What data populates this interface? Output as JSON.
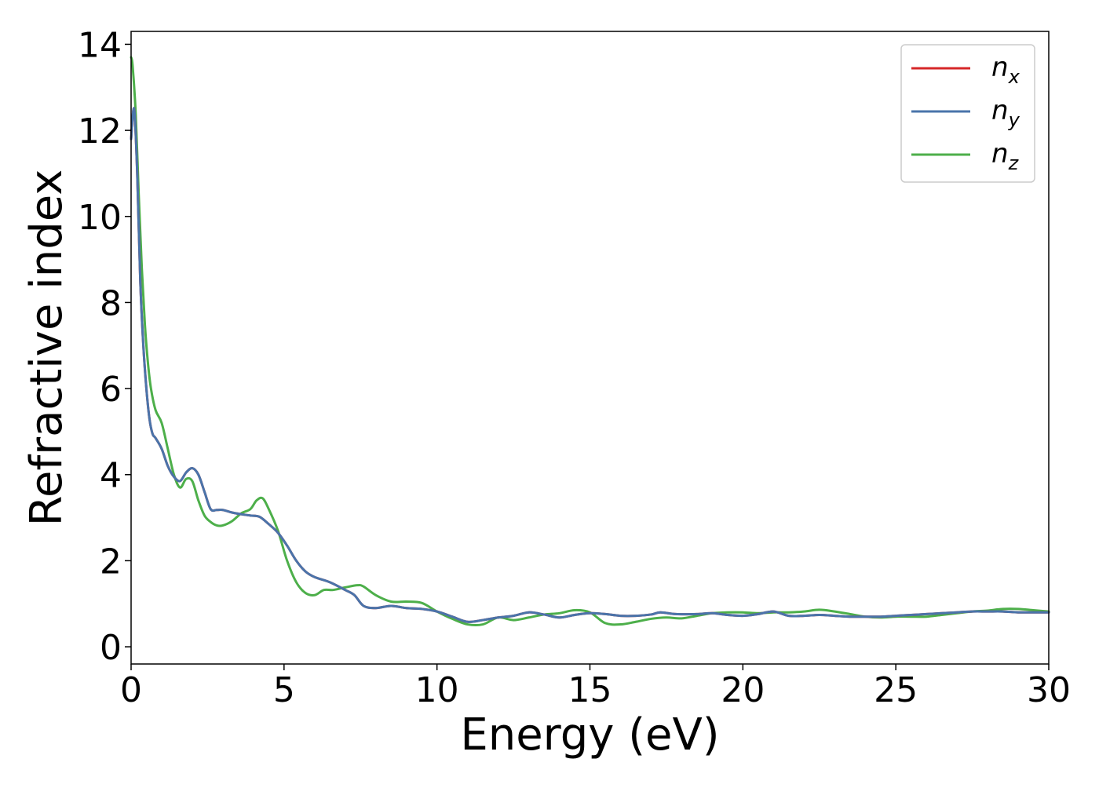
{
  "chart_data": {
    "type": "line",
    "title": "",
    "xlabel": "Energy (eV)",
    "ylabel": "Refractive index",
    "xlim": [
      0,
      30
    ],
    "ylim": [
      -0.4,
      14.3
    ],
    "xticks": [
      0,
      5,
      10,
      15,
      20,
      25,
      30
    ],
    "yticks": [
      0,
      2,
      4,
      6,
      8,
      10,
      12,
      14
    ],
    "grid": false,
    "legend_position": "top-right",
    "series": [
      {
        "name": "n_x",
        "label_base": "n",
        "label_sub": "x",
        "color": "#d62728",
        "x": [
          0.0,
          0.1,
          0.2,
          0.3,
          0.4,
          0.5,
          0.6,
          0.7,
          0.8,
          1.0,
          1.2,
          1.4,
          1.6,
          1.8,
          2.0,
          2.2,
          2.4,
          2.6,
          2.8,
          3.0,
          3.3,
          3.6,
          3.9,
          4.2,
          4.5,
          4.8,
          5.1,
          5.4,
          5.7,
          6.0,
          6.5,
          7.0,
          7.3,
          7.6,
          8.0,
          8.5,
          9.0,
          9.5,
          10.0,
          10.5,
          11.0,
          11.5,
          12.0,
          12.5,
          13.0,
          13.5,
          14.0,
          14.5,
          15.0,
          15.5,
          16.0,
          16.5,
          17.0,
          17.3,
          17.8,
          18.5,
          19.0,
          19.5,
          20.0,
          20.5,
          21.0,
          21.5,
          22.0,
          22.5,
          23.0,
          23.5,
          24.0,
          24.5,
          25.0,
          25.5,
          26.0,
          26.5,
          27.0,
          27.5,
          28.0,
          28.5,
          29.0,
          29.5,
          30.0
        ],
        "y": [
          11.8,
          12.5,
          11.0,
          8.5,
          7.0,
          6.0,
          5.3,
          4.95,
          4.85,
          4.6,
          4.2,
          3.95,
          3.85,
          4.05,
          4.15,
          4.0,
          3.6,
          3.2,
          3.18,
          3.18,
          3.12,
          3.08,
          3.05,
          3.02,
          2.85,
          2.65,
          2.35,
          2.0,
          1.75,
          1.62,
          1.5,
          1.32,
          1.2,
          0.95,
          0.9,
          0.95,
          0.9,
          0.88,
          0.82,
          0.7,
          0.58,
          0.62,
          0.68,
          0.72,
          0.8,
          0.75,
          0.68,
          0.74,
          0.78,
          0.76,
          0.72,
          0.72,
          0.75,
          0.8,
          0.76,
          0.76,
          0.78,
          0.74,
          0.72,
          0.76,
          0.82,
          0.72,
          0.72,
          0.74,
          0.72,
          0.7,
          0.7,
          0.7,
          0.72,
          0.74,
          0.76,
          0.78,
          0.8,
          0.82,
          0.82,
          0.82,
          0.8,
          0.8,
          0.8
        ]
      },
      {
        "name": "n_y",
        "label_base": "n",
        "label_sub": "y",
        "color": "#4a74aa",
        "x": [
          0.0,
          0.1,
          0.2,
          0.3,
          0.4,
          0.5,
          0.6,
          0.7,
          0.8,
          1.0,
          1.2,
          1.4,
          1.6,
          1.8,
          2.0,
          2.2,
          2.4,
          2.6,
          2.8,
          3.0,
          3.3,
          3.6,
          3.9,
          4.2,
          4.5,
          4.8,
          5.1,
          5.4,
          5.7,
          6.0,
          6.5,
          7.0,
          7.3,
          7.6,
          8.0,
          8.5,
          9.0,
          9.5,
          10.0,
          10.5,
          11.0,
          11.5,
          12.0,
          12.5,
          13.0,
          13.5,
          14.0,
          14.5,
          15.0,
          15.5,
          16.0,
          16.5,
          17.0,
          17.3,
          17.8,
          18.5,
          19.0,
          19.5,
          20.0,
          20.5,
          21.0,
          21.5,
          22.0,
          22.5,
          23.0,
          23.5,
          24.0,
          24.5,
          25.0,
          25.5,
          26.0,
          26.5,
          27.0,
          27.5,
          28.0,
          28.5,
          29.0,
          29.5,
          30.0
        ],
        "y": [
          11.8,
          12.5,
          11.0,
          8.5,
          7.0,
          6.0,
          5.3,
          4.95,
          4.85,
          4.6,
          4.2,
          3.95,
          3.85,
          4.05,
          4.15,
          4.0,
          3.6,
          3.2,
          3.18,
          3.18,
          3.12,
          3.08,
          3.05,
          3.02,
          2.85,
          2.65,
          2.35,
          2.0,
          1.75,
          1.62,
          1.5,
          1.32,
          1.2,
          0.95,
          0.9,
          0.95,
          0.9,
          0.88,
          0.82,
          0.7,
          0.58,
          0.62,
          0.68,
          0.72,
          0.8,
          0.75,
          0.68,
          0.74,
          0.78,
          0.76,
          0.72,
          0.72,
          0.75,
          0.8,
          0.76,
          0.76,
          0.78,
          0.74,
          0.72,
          0.76,
          0.82,
          0.72,
          0.72,
          0.74,
          0.72,
          0.7,
          0.7,
          0.7,
          0.72,
          0.74,
          0.76,
          0.78,
          0.8,
          0.82,
          0.82,
          0.82,
          0.8,
          0.8,
          0.8
        ]
      },
      {
        "name": "n_z",
        "label_base": "n",
        "label_sub": "z",
        "color": "#4daf4a",
        "x": [
          0.0,
          0.05,
          0.15,
          0.25,
          0.35,
          0.45,
          0.55,
          0.65,
          0.8,
          1.0,
          1.2,
          1.4,
          1.6,
          1.8,
          2.0,
          2.2,
          2.4,
          2.6,
          2.8,
          3.0,
          3.3,
          3.6,
          3.9,
          4.1,
          4.3,
          4.5,
          4.8,
          5.1,
          5.4,
          5.7,
          6.0,
          6.3,
          6.6,
          7.0,
          7.4,
          7.6,
          8.0,
          8.5,
          9.0,
          9.5,
          10.0,
          10.5,
          11.0,
          11.5,
          12.0,
          12.5,
          13.0,
          13.5,
          14.0,
          14.5,
          15.0,
          15.5,
          16.0,
          16.5,
          17.0,
          17.5,
          18.0,
          18.5,
          19.0,
          19.5,
          20.0,
          20.5,
          21.0,
          21.5,
          22.0,
          22.5,
          23.0,
          23.5,
          24.0,
          24.5,
          25.0,
          25.5,
          26.0,
          26.5,
          27.0,
          27.5,
          28.0,
          28.5,
          29.0,
          29.5,
          30.0
        ],
        "y": [
          13.7,
          13.5,
          12.4,
          10.5,
          8.8,
          7.5,
          6.6,
          6.0,
          5.5,
          5.2,
          4.6,
          4.0,
          3.7,
          3.9,
          3.85,
          3.4,
          3.05,
          2.9,
          2.82,
          2.82,
          2.92,
          3.1,
          3.2,
          3.4,
          3.45,
          3.2,
          2.7,
          2.0,
          1.5,
          1.25,
          1.2,
          1.32,
          1.32,
          1.38,
          1.43,
          1.4,
          1.2,
          1.05,
          1.05,
          1.02,
          0.82,
          0.65,
          0.52,
          0.52,
          0.68,
          0.62,
          0.68,
          0.75,
          0.78,
          0.85,
          0.8,
          0.55,
          0.52,
          0.58,
          0.65,
          0.68,
          0.66,
          0.72,
          0.78,
          0.8,
          0.8,
          0.78,
          0.8,
          0.8,
          0.82,
          0.86,
          0.82,
          0.76,
          0.7,
          0.68,
          0.7,
          0.7,
          0.7,
          0.74,
          0.78,
          0.82,
          0.84,
          0.88,
          0.88,
          0.85,
          0.82
        ]
      }
    ]
  }
}
